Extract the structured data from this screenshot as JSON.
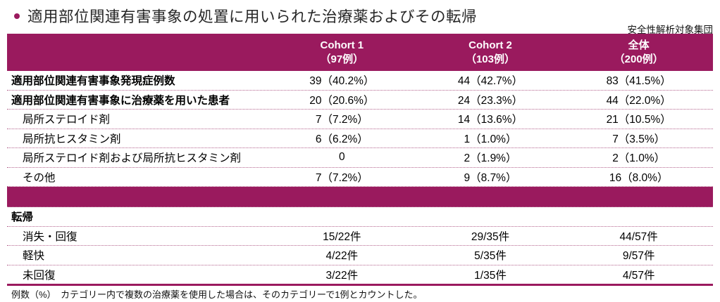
{
  "page": {
    "title": "適用部位関連有害事象の処置に用いられた治療薬およびその転帰",
    "subtitle": "安全性解析対象集団",
    "footnote": "例数（%）　カテゴリー内で複数の治療薬を使用した場合は、そのカテゴリーで1例とカウントした。"
  },
  "colors": {
    "accent": "#9A1A5E",
    "dotted_separator": "#B4648E",
    "header_text": "#FFFFFF"
  },
  "table": {
    "columns": [
      {
        "name": "Cohort 1",
        "count": "（97例）"
      },
      {
        "name": "Cohort 2",
        "count": "（103例）"
      },
      {
        "name": "全体",
        "count": "（200例）"
      }
    ],
    "sections": [
      {
        "rows": [
          {
            "label": "適用部位関連有害事象発現症例数",
            "bold": true,
            "indent": false,
            "values": [
              "39（40.2%）",
              "44（42.7%）",
              "83（41.5%）"
            ]
          },
          {
            "label": "適用部位関連有害事象に治療薬を用いた患者",
            "bold": true,
            "indent": false,
            "values": [
              "20（20.6%）",
              "24（23.3%）",
              "44（22.0%）"
            ]
          },
          {
            "label": "局所ステロイド剤",
            "bold": false,
            "indent": true,
            "values": [
              "7（7.2%）",
              "14（13.6%）",
              "21（10.5%）"
            ]
          },
          {
            "label": "局所抗ヒスタミン剤",
            "bold": false,
            "indent": true,
            "values": [
              "6（6.2%）",
              "1（1.0%）",
              "7（3.5%）"
            ]
          },
          {
            "label": "局所ステロイド剤および局所抗ヒスタミン剤",
            "bold": false,
            "indent": true,
            "values": [
              "0",
              "2（1.9%）",
              "2（1.0%）"
            ]
          },
          {
            "label": "その他",
            "bold": false,
            "indent": true,
            "values": [
              "7（7.2%）",
              "9（8.7%）",
              "16（8.0%）"
            ]
          }
        ]
      },
      {
        "rows": [
          {
            "label": "転帰",
            "bold": true,
            "indent": false,
            "values": [
              "",
              "",
              ""
            ]
          },
          {
            "label": "消失・回復",
            "bold": false,
            "indent": true,
            "values": [
              "15/22件",
              "29/35件",
              "44/57件"
            ]
          },
          {
            "label": "軽快",
            "bold": false,
            "indent": true,
            "values": [
              "4/22件",
              "5/35件",
              "9/57件"
            ]
          },
          {
            "label": "未回復",
            "bold": false,
            "indent": true,
            "values": [
              "3/22件",
              "1/35件",
              "4/57件"
            ]
          }
        ]
      }
    ]
  }
}
